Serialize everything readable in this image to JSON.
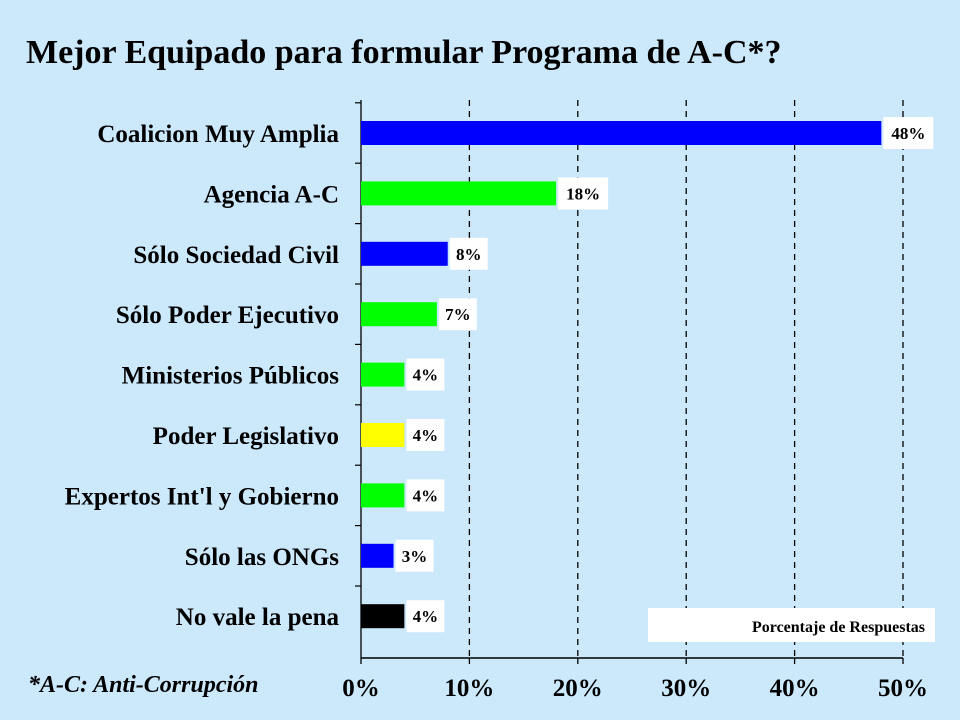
{
  "title": "Mejor Equipado para formular Programa de A-C*?",
  "footnote": "*A-C: Anti-Corrupción",
  "chart_data": {
    "type": "bar",
    "orientation": "horizontal",
    "title": "Mejor Equipado para formular Programa de A-C*?",
    "xlabel": "",
    "ylabel": "",
    "xlim": [
      0,
      50
    ],
    "xticks": [
      "0%",
      "10%",
      "20%",
      "30%",
      "40%",
      "50%"
    ],
    "grid": "vertical dashed",
    "legend": {
      "text": "Porcentaje de Respuestas",
      "placement": "bottom-right"
    },
    "categories": [
      "Coalicion Muy Amplia",
      "Agencia A-C",
      "Sólo Sociedad Civil",
      "Sólo Poder Ejecutivo",
      "Ministerios Públicos",
      "Poder Legislativo",
      "Expertos Int'l y Gobierno",
      "Sólo las ONGs",
      "No vale la pena"
    ],
    "values": [
      48,
      18,
      8,
      7,
      4,
      4,
      4,
      3,
      4
    ],
    "value_labels": [
      "48%",
      "18%",
      "8%",
      "7%",
      "4%",
      "4%",
      "4%",
      "3%",
      "4%"
    ],
    "colors": [
      "#0000ff",
      "#00ff00",
      "#0000ff",
      "#00ff00",
      "#00ff00",
      "#ffff00",
      "#00ff00",
      "#0000ff",
      "#000000"
    ]
  }
}
